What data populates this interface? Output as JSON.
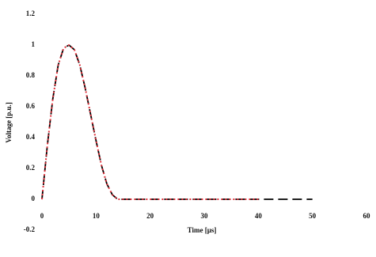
{
  "chart_data": {
    "type": "line",
    "x_label": "Time [µs]",
    "y_label": "Voltage [p.u.]",
    "x": [
      0,
      1,
      2,
      3,
      4,
      5,
      6,
      7,
      8,
      9,
      10,
      11,
      12,
      13,
      14,
      15,
      20,
      30,
      40,
      50
    ],
    "series": [
      {
        "color": "#000000",
        "dash": "dashed",
        "values": [
          0,
          0.35,
          0.65,
          0.87,
          0.98,
          1.0,
          0.97,
          0.87,
          0.72,
          0.55,
          0.38,
          0.22,
          0.1,
          0.03,
          0.0,
          0,
          0,
          0,
          0,
          0
        ]
      },
      {
        "color": "#e0303a",
        "dash": "dotted",
        "values": [
          0,
          0.35,
          0.65,
          0.87,
          0.98,
          1.0,
          0.97,
          0.87,
          0.72,
          0.55,
          0.38,
          0.22,
          0.1,
          0.03,
          0.0,
          0,
          0,
          0,
          0,
          null
        ]
      }
    ],
    "xlim": [
      0,
      60
    ],
    "xticks": [
      0,
      10,
      20,
      30,
      40,
      50,
      60
    ],
    "ylim": [
      -0.2,
      1.2
    ],
    "yticks": [
      -0.2,
      0,
      0.2,
      0.4,
      0.6,
      0.8,
      1,
      1.2
    ]
  }
}
